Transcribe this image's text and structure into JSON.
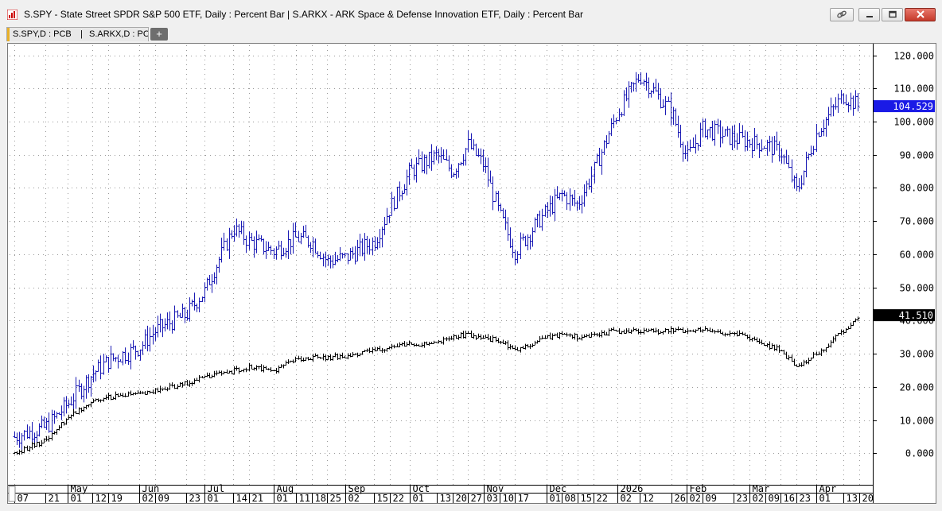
{
  "window": {
    "title": "S.SPY - State Street SPDR S&P 500 ETF, Daily : Percent Bar   |   S.ARKX - ARK Space & Defense Innovation ETF, Daily : Percent Bar",
    "tab_label_1": "S.SPY,D : PCB",
    "tab_label_sep": "|",
    "tab_label_2": "S.ARKX,D : PCB",
    "add_tab_label": "+"
  },
  "colors": {
    "arkx": "#1a1ab4",
    "spy": "#000000",
    "arkx_badge": "#1a1ae6",
    "spy_badge": "#000000",
    "grid": "#9a9a9a"
  },
  "chart_data": {
    "type": "line",
    "chart_style": "percent bar (OHLC)",
    "y_axis": {
      "position": "right",
      "ticks": [
        0,
        10,
        20,
        30,
        40,
        50,
        60,
        70,
        80,
        90,
        100,
        110,
        120
      ],
      "tick_labels": [
        "0.000",
        "10.000",
        "20.000",
        "30.000",
        "40.000",
        "50.000",
        "60.000",
        "70.000",
        "80.000",
        "90.000",
        "100.000",
        "110.000",
        "120.000"
      ],
      "range": [
        -9.5,
        123
      ]
    },
    "x_axis": {
      "start": "2025-04-07",
      "end": "2026-04-24",
      "month_labels": [
        {
          "date": "2025-05-01",
          "label": "May"
        },
        {
          "date": "2025-06-02",
          "label": "Jun"
        },
        {
          "date": "2025-07-01",
          "label": "Jul"
        },
        {
          "date": "2025-08-01",
          "label": "Aug"
        },
        {
          "date": "2025-09-02",
          "label": "Sep"
        },
        {
          "date": "2025-10-01",
          "label": "Oct"
        },
        {
          "date": "2025-11-03",
          "label": "Nov"
        },
        {
          "date": "2025-12-01",
          "label": "Dec"
        },
        {
          "date": "2026-01-02",
          "label": "2026"
        },
        {
          "date": "2026-02-02",
          "label": "Feb"
        },
        {
          "date": "2026-03-02",
          "label": "Mar"
        },
        {
          "date": "2026-04-01",
          "label": "Apr"
        }
      ],
      "day_labels": [
        {
          "date": "2025-04-07",
          "label": "07"
        },
        {
          "date": "2025-04-21",
          "label": "21"
        },
        {
          "date": "2025-05-01",
          "label": "01"
        },
        {
          "date": "2025-05-12",
          "label": "12"
        },
        {
          "date": "2025-05-19",
          "label": "19"
        },
        {
          "date": "2025-06-02",
          "label": "02"
        },
        {
          "date": "2025-06-09",
          "label": "09"
        },
        {
          "date": "2025-06-23",
          "label": "23"
        },
        {
          "date": "2025-07-01",
          "label": "01"
        },
        {
          "date": "2025-07-14",
          "label": "14"
        },
        {
          "date": "2025-07-21",
          "label": "21"
        },
        {
          "date": "2025-08-01",
          "label": "01"
        },
        {
          "date": "2025-08-11",
          "label": "11"
        },
        {
          "date": "2025-08-18",
          "label": "18"
        },
        {
          "date": "2025-08-25",
          "label": "25"
        },
        {
          "date": "2025-09-02",
          "label": "02"
        },
        {
          "date": "2025-09-15",
          "label": "15"
        },
        {
          "date": "2025-09-22",
          "label": "22"
        },
        {
          "date": "2025-10-01",
          "label": "01"
        },
        {
          "date": "2025-10-13",
          "label": "13"
        },
        {
          "date": "2025-10-20",
          "label": "20"
        },
        {
          "date": "2025-10-27",
          "label": "27"
        },
        {
          "date": "2025-11-03",
          "label": "03"
        },
        {
          "date": "2025-11-10",
          "label": "10"
        },
        {
          "date": "2025-11-17",
          "label": "17"
        },
        {
          "date": "2025-12-01",
          "label": "01"
        },
        {
          "date": "2025-12-08",
          "label": "08"
        },
        {
          "date": "2025-12-15",
          "label": "15"
        },
        {
          "date": "2025-12-22",
          "label": "22"
        },
        {
          "date": "2026-01-02",
          "label": "02"
        },
        {
          "date": "2026-01-12",
          "label": "12"
        },
        {
          "date": "2026-01-26",
          "label": "26"
        },
        {
          "date": "2026-02-02",
          "label": "02"
        },
        {
          "date": "2026-02-09",
          "label": "09"
        },
        {
          "date": "2026-02-23",
          "label": "23"
        },
        {
          "date": "2026-03-02",
          "label": "02"
        },
        {
          "date": "2026-03-09",
          "label": "09"
        },
        {
          "date": "2026-03-16",
          "label": "16"
        },
        {
          "date": "2026-03-23",
          "label": "23"
        },
        {
          "date": "2026-04-01",
          "label": "01"
        },
        {
          "date": "2026-04-13",
          "label": "13"
        },
        {
          "date": "2026-04-20",
          "label": "20"
        }
      ]
    },
    "grid": true,
    "series": [
      {
        "name": "S.ARKX",
        "last_value_label": "104.529",
        "last_value": 104.529,
        "points": [
          {
            "x": "2025-04-07",
            "y": 5
          },
          {
            "x": "2025-04-21",
            "y": 8
          },
          {
            "x": "2025-05-01",
            "y": 15
          },
          {
            "x": "2025-05-12",
            "y": 24
          },
          {
            "x": "2025-05-19",
            "y": 28
          },
          {
            "x": "2025-06-02",
            "y": 32
          },
          {
            "x": "2025-06-09",
            "y": 37
          },
          {
            "x": "2025-06-23",
            "y": 42
          },
          {
            "x": "2025-07-01",
            "y": 49
          },
          {
            "x": "2025-07-14",
            "y": 68
          },
          {
            "x": "2025-07-21",
            "y": 64
          },
          {
            "x": "2025-08-01",
            "y": 61
          },
          {
            "x": "2025-08-11",
            "y": 65
          },
          {
            "x": "2025-08-18",
            "y": 64
          },
          {
            "x": "2025-08-25",
            "y": 58
          },
          {
            "x": "2025-09-02",
            "y": 59
          },
          {
            "x": "2025-09-15",
            "y": 64
          },
          {
            "x": "2025-09-22",
            "y": 74
          },
          {
            "x": "2025-10-01",
            "y": 85
          },
          {
            "x": "2025-10-13",
            "y": 90
          },
          {
            "x": "2025-10-20",
            "y": 85
          },
          {
            "x": "2025-10-27",
            "y": 93
          },
          {
            "x": "2025-11-03",
            "y": 87
          },
          {
            "x": "2025-11-10",
            "y": 72
          },
          {
            "x": "2025-11-17",
            "y": 61
          },
          {
            "x": "2025-12-01",
            "y": 73
          },
          {
            "x": "2025-12-08",
            "y": 78
          },
          {
            "x": "2025-12-15",
            "y": 75
          },
          {
            "x": "2025-12-22",
            "y": 85
          },
          {
            "x": "2026-01-02",
            "y": 103
          },
          {
            "x": "2026-01-12",
            "y": 114
          },
          {
            "x": "2026-01-26",
            "y": 103
          },
          {
            "x": "2026-02-02",
            "y": 89
          },
          {
            "x": "2026-02-09",
            "y": 98
          },
          {
            "x": "2026-02-23",
            "y": 95
          },
          {
            "x": "2026-03-02",
            "y": 94
          },
          {
            "x": "2026-03-09",
            "y": 93
          },
          {
            "x": "2026-03-16",
            "y": 91
          },
          {
            "x": "2026-03-23",
            "y": 79
          },
          {
            "x": "2026-04-01",
            "y": 97
          },
          {
            "x": "2026-04-13",
            "y": 108
          },
          {
            "x": "2026-04-20",
            "y": 104.529
          }
        ]
      },
      {
        "name": "S.SPY",
        "last_value_label": "41.510",
        "last_value": 41.51,
        "points": [
          {
            "x": "2025-04-07",
            "y": 0
          },
          {
            "x": "2025-04-21",
            "y": 4
          },
          {
            "x": "2025-05-01",
            "y": 11
          },
          {
            "x": "2025-05-12",
            "y": 16
          },
          {
            "x": "2025-05-19",
            "y": 17
          },
          {
            "x": "2025-06-02",
            "y": 18
          },
          {
            "x": "2025-06-09",
            "y": 19
          },
          {
            "x": "2025-06-23",
            "y": 21
          },
          {
            "x": "2025-07-01",
            "y": 23
          },
          {
            "x": "2025-07-14",
            "y": 25
          },
          {
            "x": "2025-07-21",
            "y": 26
          },
          {
            "x": "2025-08-01",
            "y": 25
          },
          {
            "x": "2025-08-11",
            "y": 28
          },
          {
            "x": "2025-08-18",
            "y": 29
          },
          {
            "x": "2025-08-25",
            "y": 29
          },
          {
            "x": "2025-09-02",
            "y": 29
          },
          {
            "x": "2025-09-15",
            "y": 31
          },
          {
            "x": "2025-09-22",
            "y": 32
          },
          {
            "x": "2025-10-01",
            "y": 33
          },
          {
            "x": "2025-10-13",
            "y": 33
          },
          {
            "x": "2025-10-20",
            "y": 35
          },
          {
            "x": "2025-10-27",
            "y": 36
          },
          {
            "x": "2025-11-03",
            "y": 35
          },
          {
            "x": "2025-11-10",
            "y": 34
          },
          {
            "x": "2025-11-17",
            "y": 31
          },
          {
            "x": "2025-12-01",
            "y": 35
          },
          {
            "x": "2025-12-08",
            "y": 36
          },
          {
            "x": "2025-12-15",
            "y": 35
          },
          {
            "x": "2025-12-22",
            "y": 36
          },
          {
            "x": "2026-01-02",
            "y": 37
          },
          {
            "x": "2026-01-12",
            "y": 37
          },
          {
            "x": "2026-01-26",
            "y": 37
          },
          {
            "x": "2026-02-02",
            "y": 37
          },
          {
            "x": "2026-02-09",
            "y": 37
          },
          {
            "x": "2026-02-23",
            "y": 36
          },
          {
            "x": "2026-03-02",
            "y": 35
          },
          {
            "x": "2026-03-09",
            "y": 33
          },
          {
            "x": "2026-03-16",
            "y": 31
          },
          {
            "x": "2026-03-23",
            "y": 26
          },
          {
            "x": "2026-04-01",
            "y": 30
          },
          {
            "x": "2026-04-13",
            "y": 37
          },
          {
            "x": "2026-04-20",
            "y": 41.51
          }
        ]
      }
    ]
  }
}
